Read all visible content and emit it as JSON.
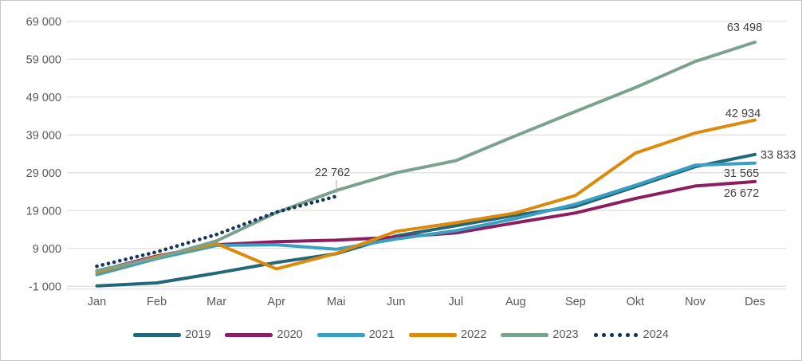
{
  "chart_data": {
    "type": "line",
    "title": "",
    "xlabel": "",
    "ylabel": "",
    "categories": [
      "Jan",
      "Feb",
      "Mar",
      "Apr",
      "Mai",
      "Jun",
      "Jul",
      "Aug",
      "Sep",
      "Okt",
      "Nov",
      "Des"
    ],
    "y_axis": {
      "min": -1000,
      "max": 69000,
      "step": 10000,
      "tick_labels_top_to_bottom": [
        "69 000",
        "59 000",
        "49 000",
        "39 000",
        "29 000",
        "19 000",
        "9 000",
        "-1 000"
      ]
    },
    "grid": true,
    "legend_position": "bottom",
    "series": [
      {
        "name": "2019",
        "color": "#226878",
        "line_style": "solid",
        "values": [
          -900,
          -100,
          2500,
          5300,
          7600,
          12300,
          15000,
          17800,
          20100,
          25300,
          30600,
          33833
        ],
        "end_label": "33 833"
      },
      {
        "name": "2020",
        "color": "#8c1d61",
        "line_style": "solid",
        "values": [
          3000,
          7000,
          10000,
          10800,
          11200,
          12000,
          13100,
          15800,
          18400,
          22200,
          25500,
          26672
        ],
        "end_label": "26 672"
      },
      {
        "name": "2021",
        "color": "#3a9fc2",
        "line_style": "solid",
        "values": [
          2100,
          6300,
          9800,
          10000,
          8800,
          11500,
          13700,
          16900,
          20700,
          25700,
          31000,
          31565
        ],
        "end_label": "31 565"
      },
      {
        "name": "2022",
        "color": "#dd8a0c",
        "line_style": "solid",
        "values": [
          2700,
          6800,
          10300,
          3600,
          7700,
          13500,
          15800,
          18400,
          23000,
          34200,
          39500,
          42934
        ],
        "end_label": "42 934"
      },
      {
        "name": "2023",
        "color": "#7aa28e",
        "line_style": "solid",
        "values": [
          3200,
          6500,
          11000,
          18500,
          24300,
          29000,
          32200,
          38800,
          45200,
          51500,
          58400,
          63498
        ],
        "end_label": "63 498"
      },
      {
        "name": "2024",
        "color": "#15375f",
        "line_style": "dotted",
        "values": [
          4300,
          8100,
          12700,
          18600,
          22762
        ],
        "end_label": "22 762"
      }
    ],
    "colors": {
      "gridline": "#d9d9d9",
      "axis_text": "#595959",
      "data_label_text": "#404040",
      "leader_line": "#a6a6a6",
      "frame_border": "#c8c6c4"
    }
  }
}
